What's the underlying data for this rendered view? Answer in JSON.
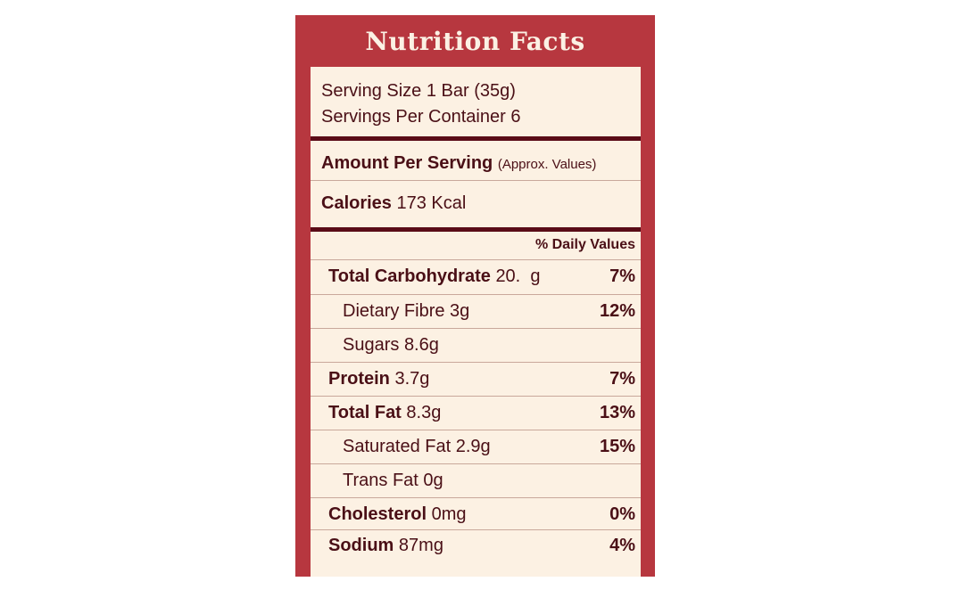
{
  "title": "Nutrition Facts",
  "serving": {
    "size": "Serving Size 1 Bar (35g)",
    "per_container": "Servings Per Container 6"
  },
  "amount_header": {
    "label": "Amount Per Serving",
    "note": "(Approx. Values)"
  },
  "calories": {
    "label": "Calories",
    "value": "173 Kcal"
  },
  "daily_values_header": "% Daily Values",
  "nutrients": [
    {
      "name": "Total Carbohydrate",
      "amount": "20.  g",
      "dv": "7%"
    },
    {
      "name": "Dietary Fibre",
      "amount": "3g",
      "dv": "12%"
    },
    {
      "name": "Sugars",
      "amount": "8.6g",
      "dv": ""
    },
    {
      "name": "Protein",
      "amount": "3.7g",
      "dv": "7%"
    },
    {
      "name": "Total Fat",
      "amount": "8.3g",
      "dv": "13%"
    },
    {
      "name": "Saturated Fat",
      "amount": "2.9g",
      "dv": "15%"
    },
    {
      "name": "Trans Fat",
      "amount": "0g",
      "dv": ""
    },
    {
      "name": "Cholesterol",
      "amount": "0mg",
      "dv": "0%"
    },
    {
      "name": "Sodium",
      "amount": "87mg",
      "dv": "4%"
    }
  ]
}
